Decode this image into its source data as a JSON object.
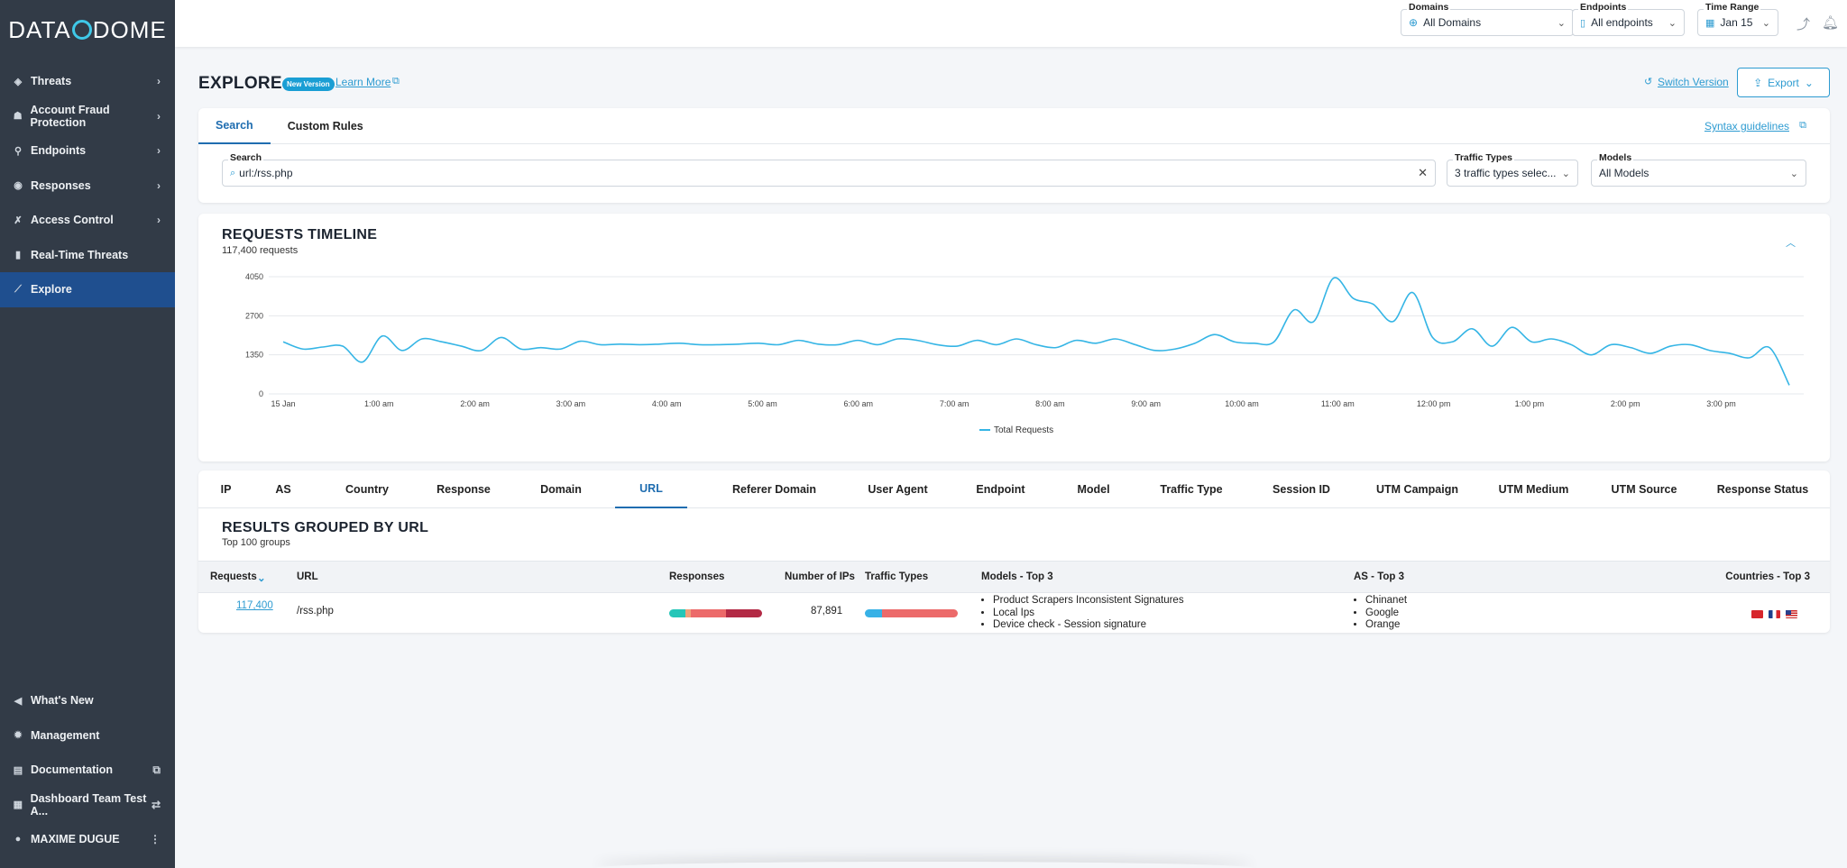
{
  "brand": {
    "logo_left": "DATA",
    "logo_right": "DOME"
  },
  "sidebar": {
    "items": [
      {
        "label": "Threats",
        "icon": "shield-icon",
        "has_chevron": true
      },
      {
        "label": "Account Fraud Protection",
        "icon": "user-shield-icon",
        "has_chevron": true
      },
      {
        "label": "Endpoints",
        "icon": "endpoint-icon",
        "has_chevron": true
      },
      {
        "label": "Responses",
        "icon": "response-icon",
        "has_chevron": true
      },
      {
        "label": "Access Control",
        "icon": "tools-icon",
        "has_chevron": true
      },
      {
        "label": "Real-Time Threats",
        "icon": "book-icon",
        "has_chevron": false
      },
      {
        "label": "Explore",
        "icon": "explore-icon",
        "has_chevron": false,
        "active": true
      }
    ],
    "bottom_items": [
      {
        "label": "What's New",
        "icon": "megaphone-icon"
      },
      {
        "label": "Management",
        "icon": "gear-icon"
      },
      {
        "label": "Documentation",
        "icon": "doc-icon"
      },
      {
        "label": "Dashboard Team Test A...",
        "icon": "dashboard-icon"
      },
      {
        "label": "MAXIME DUGUE",
        "icon": "user-icon"
      }
    ]
  },
  "topbar": {
    "domains": {
      "label": "Domains",
      "value": "All Domains"
    },
    "endpoints": {
      "label": "Endpoints",
      "value": "All endpoints"
    },
    "time_range": {
      "label": "Time Range",
      "value": "Jan 15"
    }
  },
  "header": {
    "title": "EXPLORE",
    "badge": "New Version",
    "learn_more": "Learn More",
    "switch_version": "Switch Version",
    "export": "Export"
  },
  "search_panel": {
    "tabs": [
      "Search",
      "Custom Rules"
    ],
    "active_tab": 0,
    "syntax_link": "Syntax guidelines",
    "search": {
      "label": "Search",
      "value": "url:/rss.php"
    },
    "traffic_types": {
      "label": "Traffic Types",
      "value": "3 traffic types selec..."
    },
    "models": {
      "label": "Models",
      "value": "All Models"
    }
  },
  "timeline": {
    "title": "REQUESTS TIMELINE",
    "subtitle": "117,400 requests"
  },
  "chart_data": {
    "type": "line",
    "title": "REQUESTS TIMELINE",
    "xlabel": "",
    "ylabel": "",
    "ylim": [
      0,
      4050
    ],
    "yticks": [
      0,
      1350,
      2700,
      4050
    ],
    "x_tick_labels": [
      "15 Jan",
      "1:00 am",
      "2:00 am",
      "3:00 am",
      "4:00 am",
      "5:00 am",
      "6:00 am",
      "7:00 am",
      "8:00 am",
      "9:00 am",
      "10:00 am",
      "11:00 am",
      "12:00 pm",
      "1:00 pm",
      "2:00 pm",
      "3:00 pm"
    ],
    "grid": true,
    "legend": "bottom-center",
    "color": "#35b5e5",
    "series": [
      {
        "name": "Total Requests",
        "values": [
          1800,
          1550,
          1620,
          1650,
          1100,
          2000,
          1500,
          1900,
          1800,
          1650,
          1500,
          1950,
          1550,
          1600,
          1550,
          1820,
          1700,
          1720,
          1700,
          1720,
          1750,
          1700,
          1700,
          1720,
          1750,
          1700,
          1850,
          1720,
          1700,
          1850,
          1700,
          1900,
          1850,
          1700,
          1650,
          1850,
          1700,
          1900,
          1700,
          1600,
          1850,
          1750,
          1900,
          1700,
          1500,
          1550,
          1750,
          2050,
          1800,
          1750,
          1800,
          2900,
          2500,
          4000,
          3300,
          3100,
          2500,
          3500,
          1950,
          1800,
          2250,
          1650,
          2300,
          1800,
          1900,
          1700,
          1350,
          1700,
          1600,
          1400,
          1650,
          1700,
          1500,
          1400,
          1250,
          1600,
          300
        ]
      }
    ]
  },
  "results": {
    "tabs": [
      "IP",
      "AS",
      "Country",
      "Response",
      "Domain",
      "URL",
      "Referer Domain",
      "User Agent",
      "Endpoint",
      "Model",
      "Traffic Type",
      "Session ID",
      "UTM Campaign",
      "UTM Medium",
      "UTM Source",
      "Response Status"
    ],
    "active_tab": 5,
    "title": "RESULTS GROUPED BY URL",
    "subtitle": "Top 100 groups",
    "columns": [
      "Requests",
      "URL",
      "Responses",
      "Number of IPs",
      "Traffic Types",
      "Models - Top 3",
      "AS - Top 3",
      "Countries - Top 3"
    ],
    "rows": [
      {
        "requests": "117,400",
        "url": "/rss.php",
        "responses": [
          {
            "color": "#25c6b8",
            "fraction": 0.17
          },
          {
            "color": "#f0a07a",
            "fraction": 0.06
          },
          {
            "color": "#ec6a6a",
            "fraction": 0.38
          },
          {
            "color": "#b32a45",
            "fraction": 0.39
          }
        ],
        "ips": "87,891",
        "traffic": [
          {
            "color": "#37b1e6",
            "fraction": 0.18
          },
          {
            "color": "#ec6a6a",
            "fraction": 0.82
          }
        ],
        "models": [
          "Product Scrapers Inconsistent Signatures",
          "Local Ips",
          "Device check - Session signature"
        ],
        "as": [
          "Chinanet",
          "Google",
          "Orange"
        ],
        "countries": [
          "cn-flag-icon",
          "fr-flag-icon",
          "us-flag-icon"
        ]
      }
    ]
  }
}
